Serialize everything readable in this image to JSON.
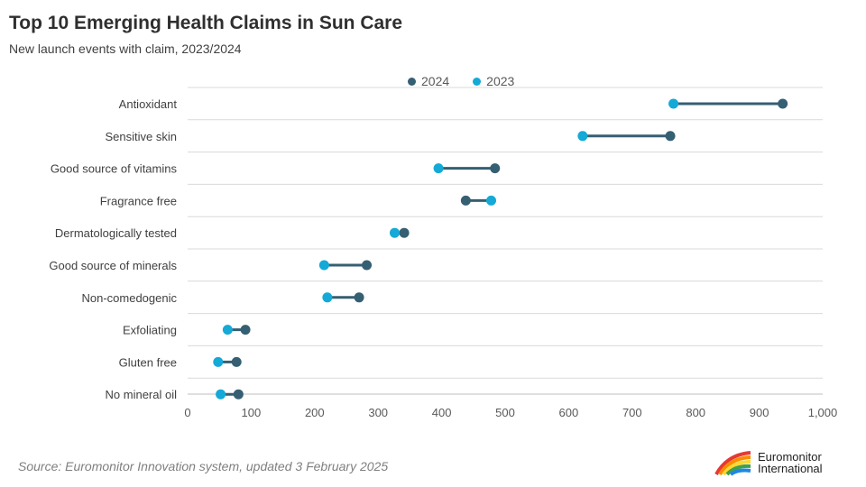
{
  "title": "Top 10 Emerging Health Claims in Sun Care",
  "subtitle": "New launch events with claim, 2023/2024",
  "source": "Source: Euromonitor Innovation system, updated 3 February 2025",
  "logo": {
    "line1": "Euromonitor",
    "line2": "International"
  },
  "colors": {
    "series2024": "#355f73",
    "series2023": "#14a9d6",
    "grid": "#d9d9d9",
    "text": "#404040"
  },
  "chart_data": {
    "type": "dumbbell",
    "categories": [
      "Antioxidant",
      "Sensitive skin",
      "Good source of vitamins",
      "Fragrance free",
      "Dermatologically tested",
      "Good source of minerals",
      "Non-comedogenic",
      "Exfoliating",
      "Gluten free",
      "No mineral oil"
    ],
    "series": [
      {
        "name": "2024",
        "color": "#355f73",
        "values": [
          937,
          760,
          484,
          438,
          341,
          282,
          270,
          91,
          77,
          80
        ]
      },
      {
        "name": "2023",
        "color": "#14a9d6",
        "values": [
          765,
          622,
          395,
          478,
          326,
          215,
          220,
          63,
          48,
          52
        ]
      }
    ],
    "xlim": [
      0,
      1000
    ],
    "xticks": [
      "0",
      "100",
      "200",
      "300",
      "400",
      "500",
      "600",
      "700",
      "800",
      "900",
      "1,000"
    ],
    "grid": true,
    "legend_position": "top-center"
  }
}
